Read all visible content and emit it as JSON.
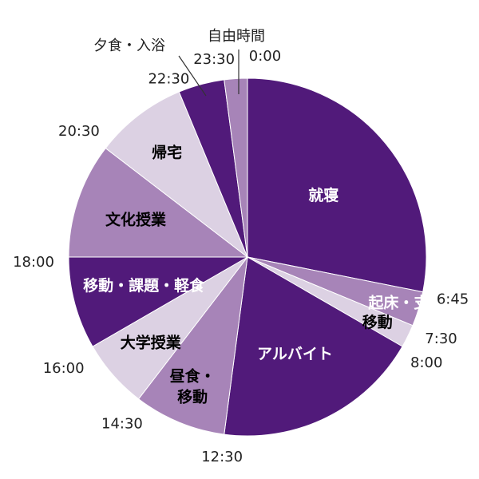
{
  "chart_data": {
    "type": "pie",
    "start_time": "0:00",
    "slices": [
      {
        "label": "就寝",
        "start": "0:00",
        "end": "6:45",
        "color": "#511a7a",
        "text_color": "#ffffff"
      },
      {
        "label": "起床・支度",
        "start": "6:45",
        "end": "7:30",
        "color": "#a784b8",
        "text_color": "#ffffff"
      },
      {
        "label": "移動",
        "start": "7:30",
        "end": "8:00",
        "color": "#dcd1e3",
        "text_color": "#000000"
      },
      {
        "label": "アルバイト",
        "start": "8:00",
        "end": "12:30",
        "color": "#511a7a",
        "text_color": "#ffffff"
      },
      {
        "label": "昼食・\n移動",
        "start": "12:30",
        "end": "14:30",
        "color": "#a784b8",
        "text_color": "#000000"
      },
      {
        "label": "大学授業",
        "start": "14:30",
        "end": "16:00",
        "color": "#dcd1e3",
        "text_color": "#000000"
      },
      {
        "label": "移動・課題・軽食",
        "start": "16:00",
        "end": "18:00",
        "color": "#511a7a",
        "text_color": "#ffffff"
      },
      {
        "label": "文化授業",
        "start": "18:00",
        "end": "20:30",
        "color": "#a784b8",
        "text_color": "#000000"
      },
      {
        "label": "帰宅",
        "start": "20:30",
        "end": "22:30",
        "color": "#dcd1e3",
        "text_color": "#000000"
      },
      {
        "label": "夕食・入浴",
        "start": "22:30",
        "end": "23:30",
        "color": "#511a7a",
        "text_color": "#000000",
        "callout": true
      },
      {
        "label": "自由時間",
        "start": "23:30",
        "end": "24:00",
        "color": "#a784b8",
        "text_color": "#000000",
        "callout": true
      }
    ],
    "time_labels": [
      "0:00",
      "6:45",
      "7:30",
      "8:00",
      "12:30",
      "14:30",
      "16:00",
      "18:00",
      "20:30",
      "22:30",
      "23:30"
    ]
  }
}
